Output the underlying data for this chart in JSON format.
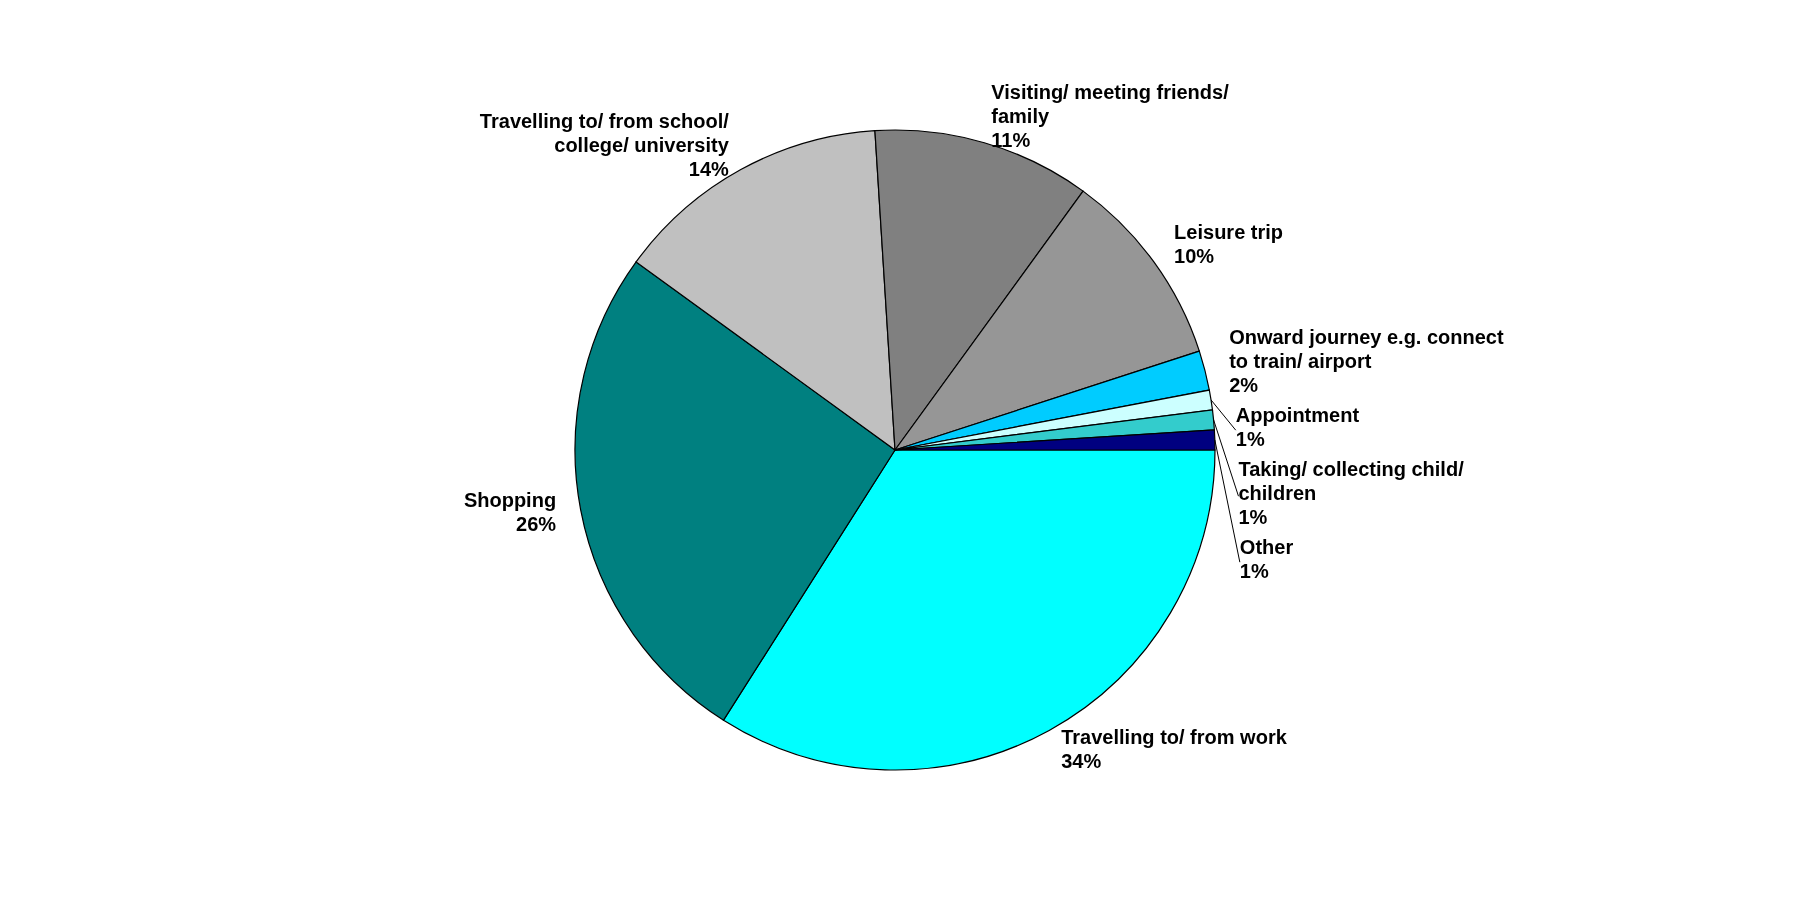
{
  "chart_data": {
    "type": "pie",
    "categories": [
      "Travelling to/ from work",
      "Shopping",
      "Travelling to/ from school/ college/ university",
      "Visiting/ meeting friends/ family",
      "Leisure trip",
      "Onward journey e.g. connect to train/ airport",
      "Appointment",
      "Taking/ collecting child/ children",
      "Other"
    ],
    "values": [
      34,
      26,
      14,
      11,
      10,
      2,
      1,
      1,
      1
    ],
    "colors": [
      "#00ffff",
      "#008080",
      "#c0c0c0",
      "#808080",
      "#969696",
      "#00ccff",
      "#ccffff",
      "#33cccc",
      "#000080"
    ],
    "value_labels": [
      "34%",
      "26%",
      "14%",
      "11%",
      "10%",
      "2%",
      "1%",
      "1%",
      "1%"
    ]
  }
}
